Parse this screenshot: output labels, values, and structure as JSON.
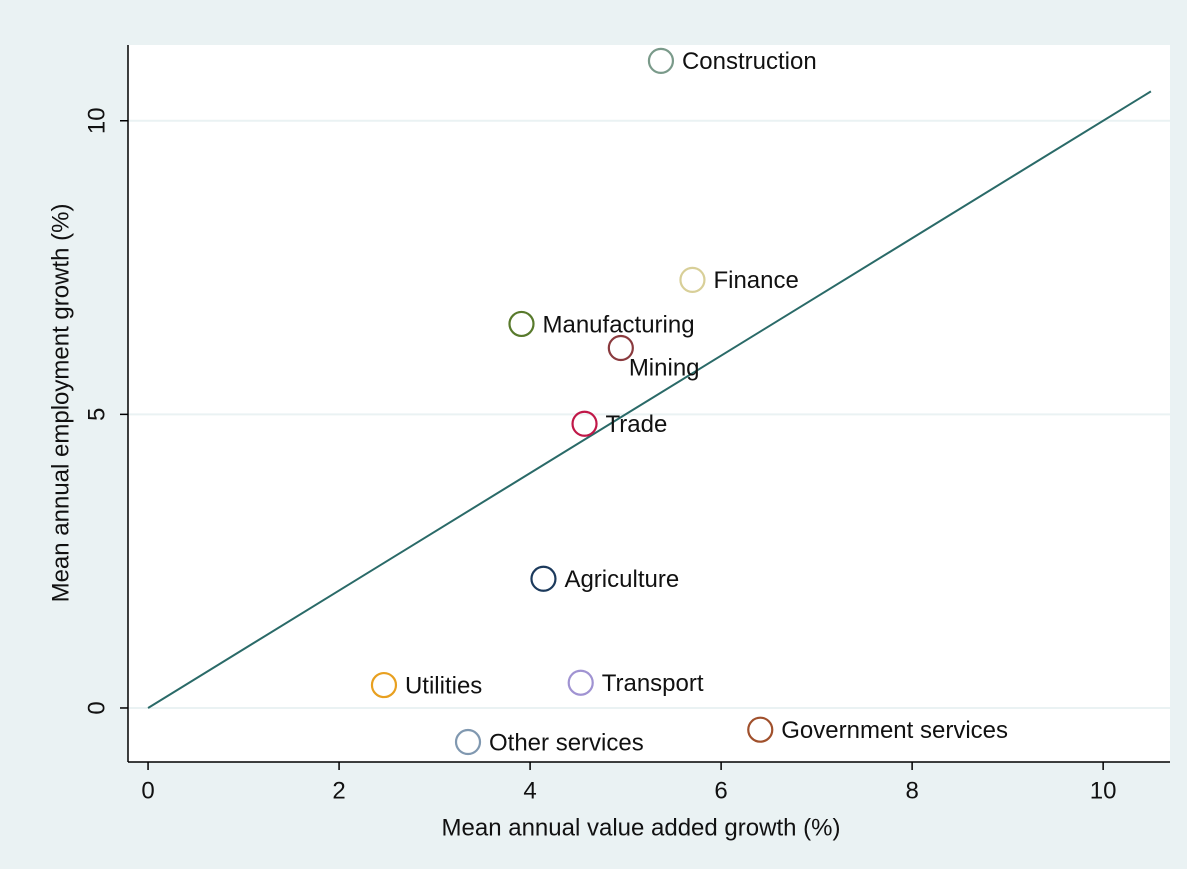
{
  "chart_data": {
    "type": "scatter",
    "xlabel": "Mean annual value added growth (%)",
    "ylabel": "Mean annual employment growth (%)",
    "labels": [
      "Construction",
      "Finance",
      "Manufacturing",
      "Mining",
      "Trade",
      "Agriculture",
      "Utilities",
      "Transport",
      "Government services",
      "Other services"
    ],
    "x": [
      5.37,
      5.7,
      3.91,
      4.95,
      4.57,
      4.14,
      2.47,
      4.53,
      6.41,
      3.35
    ],
    "y": [
      11.02,
      7.29,
      6.54,
      6.13,
      4.84,
      2.2,
      0.39,
      0.43,
      -0.37,
      -0.58
    ],
    "colors": [
      "#7a9a8a",
      "#d8cf98",
      "#587a2c",
      "#8a3a3e",
      "#c01848",
      "#1c3a5c",
      "#e8a020",
      "#a093d2",
      "#a0502c",
      "#8098b0"
    ],
    "label_positions": [
      "right",
      "right",
      "right",
      "below",
      "right",
      "right",
      "right",
      "right",
      "right",
      "right"
    ],
    "reference_line": {
      "x": [
        0,
        10.5
      ],
      "y": [
        0,
        10.5
      ],
      "color": "#2a6a68"
    },
    "xlim": [
      -0.21,
      10.7
    ],
    "ylim": [
      -0.92,
      11.29
    ],
    "xticks": [
      0,
      2,
      4,
      6,
      8,
      10
    ],
    "yticks": [
      0,
      5,
      10
    ],
    "grid": true
  }
}
